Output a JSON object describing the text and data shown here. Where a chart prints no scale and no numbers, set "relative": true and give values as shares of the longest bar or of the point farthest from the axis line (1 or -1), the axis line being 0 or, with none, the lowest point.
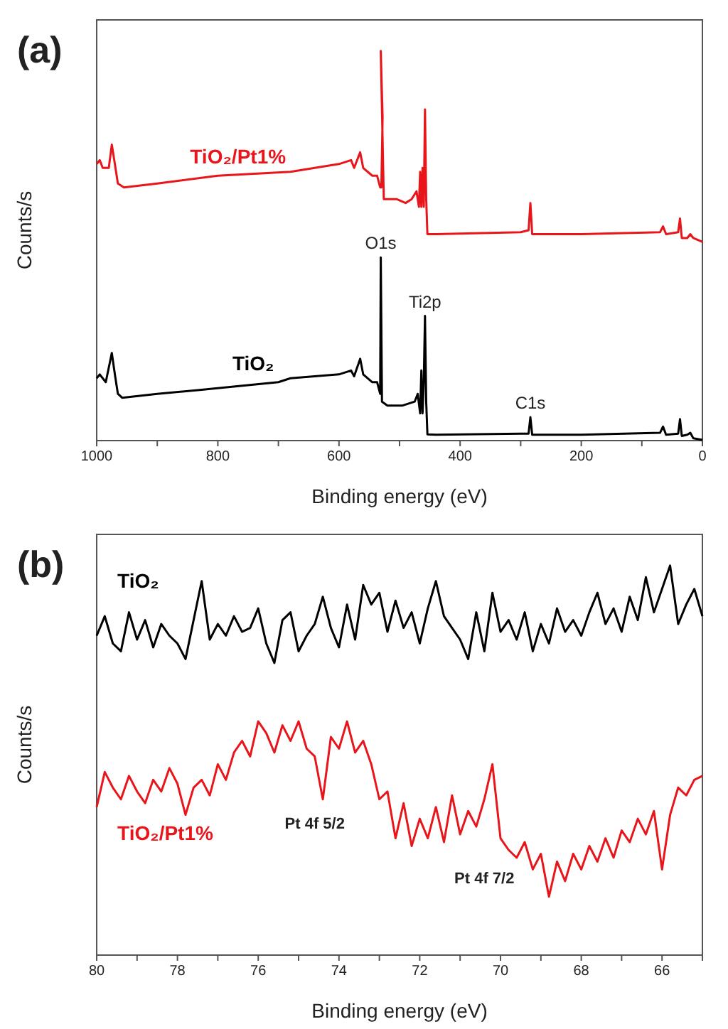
{
  "chart_data": [
    {
      "type": "line",
      "title": "(a)",
      "xlabel": "Binding energy (eV)",
      "ylabel": "Counts/s",
      "relative": true,
      "xlim": [
        1000,
        0
      ],
      "xticks": [
        1000,
        {
          "value": 900,
          "label": null
        },
        800,
        {
          "value": 700,
          "label": null
        },
        600,
        {
          "value": 500,
          "label": null
        },
        400,
        {
          "value": 300,
          "label": null
        },
        200,
        {
          "value": 100,
          "label": null
        },
        0
      ],
      "annotations": [
        {
          "text": "O1s",
          "x": 531,
          "y": 0.47
        },
        {
          "text": "Ti2p",
          "x": 458,
          "y": 0.32
        },
        {
          "text": "C1s",
          "x": 284,
          "y": 0.06
        }
      ],
      "series": [
        {
          "name": "TiO₂/Pt1%",
          "color": "#e8161b",
          "x": [
            1000,
            995,
            990,
            980,
            975,
            970,
            965,
            955,
            900,
            800,
            680,
            600,
            580,
            575,
            565,
            560,
            545,
            537,
            532,
            530,
            528,
            531,
            526,
            520,
            505,
            490,
            480,
            472,
            468,
            466,
            464,
            462,
            460,
            458,
            456,
            454,
            440,
            300,
            287,
            284,
            281,
            200,
            70,
            65,
            60,
            40,
            37,
            34,
            25,
            20,
            15,
            0
          ],
          "values": [
            0.71,
            0.72,
            0.7,
            0.7,
            0.76,
            0.71,
            0.66,
            0.65,
            0.66,
            0.68,
            0.69,
            0.71,
            0.72,
            0.7,
            0.74,
            0.7,
            0.68,
            0.68,
            0.65,
            0.65,
            0.83,
            1.0,
            0.62,
            0.62,
            0.62,
            0.61,
            0.62,
            0.64,
            0.6,
            0.69,
            0.6,
            0.7,
            0.6,
            0.85,
            0.62,
            0.53,
            0.53,
            0.535,
            0.54,
            0.61,
            0.53,
            0.53,
            0.535,
            0.55,
            0.53,
            0.535,
            0.57,
            0.52,
            0.52,
            0.53,
            0.52,
            0.51
          ]
        },
        {
          "name": "TiO₂",
          "color": "#000000",
          "x": [
            1000,
            995,
            985,
            975,
            970,
            965,
            958,
            900,
            830,
            700,
            680,
            600,
            580,
            575,
            565,
            560,
            545,
            537,
            532,
            531,
            529,
            520,
            495,
            475,
            470,
            466,
            464,
            462,
            460,
            458,
            456,
            454,
            440,
            300,
            287,
            284,
            281,
            200,
            70,
            65,
            60,
            40,
            37,
            34,
            25,
            20,
            15,
            0
          ],
          "values": [
            0.16,
            0.17,
            0.15,
            0.225,
            0.17,
            0.12,
            0.11,
            0.12,
            0.13,
            0.15,
            0.16,
            0.17,
            0.18,
            0.165,
            0.21,
            0.17,
            0.15,
            0.15,
            0.12,
            0.47,
            0.1,
            0.09,
            0.09,
            0.1,
            0.12,
            0.07,
            0.18,
            0.07,
            0.15,
            0.32,
            0.1,
            0.016,
            0.015,
            0.018,
            0.018,
            0.06,
            0.015,
            0.015,
            0.02,
            0.036,
            0.015,
            0.018,
            0.055,
            0.012,
            0.015,
            0.02,
            0.006,
            0.002
          ]
        }
      ]
    },
    {
      "type": "line",
      "title": "(b)",
      "xlabel": "Binding energy (eV)",
      "ylabel": "Counts/s",
      "relative": true,
      "xlim": [
        80,
        65
      ],
      "xticks": [
        80,
        {
          "value": 79,
          "label": null
        },
        78,
        {
          "value": 77,
          "label": null
        },
        76,
        {
          "value": 75,
          "label": null
        },
        74,
        {
          "value": 73,
          "label": null
        },
        72,
        {
          "value": 71,
          "label": null
        },
        70,
        {
          "value": 69,
          "label": null
        },
        68,
        {
          "value": 67,
          "label": null
        },
        66,
        {
          "value": 65,
          "label": null
        }
      ],
      "annotations": [
        "Pt 4f 5/2",
        "Pt 4f 7/2"
      ],
      "x": [
        80,
        79.8,
        79.6,
        79.4,
        79.2,
        79,
        78.8,
        78.6,
        78.4,
        78.2,
        78,
        77.8,
        77.6,
        77.4,
        77.2,
        77,
        76.8,
        76.6,
        76.4,
        76.2,
        76,
        75.8,
        75.6,
        75.4,
        75.2,
        75,
        74.8,
        74.6,
        74.4,
        74.2,
        74,
        73.8,
        73.6,
        73.4,
        73.2,
        73,
        72.8,
        72.6,
        72.4,
        72.2,
        72,
        71.8,
        71.6,
        71.4,
        71.2,
        71,
        70.8,
        70.6,
        70.4,
        70.2,
        70,
        69.8,
        69.6,
        69.4,
        69.2,
        69,
        68.8,
        68.6,
        68.4,
        68.2,
        68,
        67.8,
        67.6,
        67.4,
        67.2,
        67,
        66.8,
        66.6,
        66.4,
        66.2,
        66,
        65.8,
        65.6,
        65.4,
        65.2,
        65
      ],
      "series": [
        {
          "name": "TiO₂",
          "color": "#000000",
          "values": [
            0.82,
            0.87,
            0.8,
            0.78,
            0.88,
            0.81,
            0.86,
            0.79,
            0.85,
            0.82,
            0.8,
            0.76,
            0.86,
            0.96,
            0.81,
            0.85,
            0.82,
            0.87,
            0.83,
            0.84,
            0.89,
            0.8,
            0.75,
            0.86,
            0.88,
            0.78,
            0.82,
            0.85,
            0.92,
            0.84,
            0.79,
            0.9,
            0.81,
            0.95,
            0.9,
            0.93,
            0.83,
            0.91,
            0.84,
            0.88,
            0.8,
            0.89,
            0.96,
            0.87,
            0.84,
            0.81,
            0.76,
            0.88,
            0.78,
            0.93,
            0.83,
            0.86,
            0.81,
            0.88,
            0.78,
            0.85,
            0.8,
            0.89,
            0.83,
            0.86,
            0.82,
            0.88,
            0.93,
            0.85,
            0.89,
            0.83,
            0.92,
            0.86,
            0.97,
            0.88,
            0.94,
            1.0,
            0.85,
            0.9,
            0.94,
            0.87
          ]
        },
        {
          "name": "TiO₂/Pt1%",
          "color": "#e8161b",
          "values": [
            0.38,
            0.47,
            0.43,
            0.4,
            0.46,
            0.42,
            0.39,
            0.45,
            0.42,
            0.48,
            0.44,
            0.36,
            0.43,
            0.45,
            0.41,
            0.49,
            0.45,
            0.52,
            0.55,
            0.51,
            0.6,
            0.57,
            0.52,
            0.59,
            0.55,
            0.6,
            0.53,
            0.51,
            0.4,
            0.56,
            0.53,
            0.6,
            0.52,
            0.55,
            0.49,
            0.4,
            0.42,
            0.3,
            0.39,
            0.28,
            0.35,
            0.3,
            0.38,
            0.29,
            0.41,
            0.31,
            0.37,
            0.33,
            0.4,
            0.49,
            0.3,
            0.27,
            0.25,
            0.29,
            0.22,
            0.26,
            0.15,
            0.24,
            0.19,
            0.26,
            0.22,
            0.28,
            0.24,
            0.3,
            0.25,
            0.32,
            0.29,
            0.35,
            0.31,
            0.37,
            0.22,
            0.36,
            0.43,
            0.41,
            0.45,
            0.46
          ]
        }
      ]
    }
  ]
}
